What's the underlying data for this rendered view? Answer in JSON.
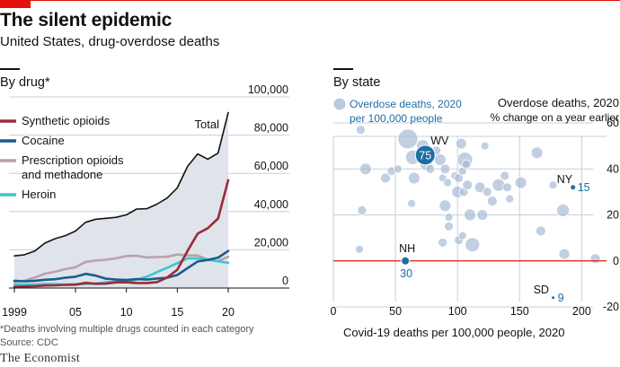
{
  "header": {
    "title": "The silent epidemic",
    "subtitle": "United States, drug-overdose deaths"
  },
  "left_section": {
    "title": "By drug*"
  },
  "right_section": {
    "title": "By state"
  },
  "footer": {
    "footnote": "*Deaths involving multiple drugs counted in each category",
    "source": "Source: CDC",
    "logo": "The Economist"
  },
  "colors": {
    "brand_red": "#e3120b",
    "total_area": "#dfe4ea",
    "synthetic": "#9e2a3a",
    "cocaine": "#1a5c8f",
    "prescription": "#b8a2ac",
    "heroin": "#3ec3cf",
    "bubble": "#a9bdd6",
    "highlight": "#1e6ea3",
    "zero_line": "#e3120b",
    "grid": "#c4d0dc"
  },
  "chart_data": [
    {
      "type": "line",
      "title": "By drug*",
      "x": [
        1999,
        2000,
        2001,
        2002,
        2003,
        2004,
        2005,
        2006,
        2007,
        2008,
        2009,
        2010,
        2011,
        2012,
        2013,
        2014,
        2015,
        2016,
        2017,
        2018,
        2019,
        2020
      ],
      "x_tick_labels": [
        "1999",
        "05",
        "10",
        "15",
        "20"
      ],
      "x_tick_values": [
        1999,
        2005,
        2010,
        2015,
        2020
      ],
      "ylim": [
        0,
        100000
      ],
      "y_ticks": [
        0,
        20000,
        40000,
        60000,
        80000,
        100000
      ],
      "y_tick_labels": [
        "0",
        "20,000",
        "40,000",
        "60,000",
        "80,000",
        "100,000"
      ],
      "total_label": "Total",
      "series": [
        {
          "name": "Total",
          "key": "total",
          "values": [
            16800,
            17400,
            19400,
            23500,
            25800,
            27400,
            29800,
            34400,
            36000,
            36500,
            37000,
            38300,
            41300,
            41500,
            43900,
            47100,
            52400,
            63600,
            70200,
            67400,
            70600,
            91800
          ]
        },
        {
          "name": "Synthetic opioids",
          "key": "synthetic",
          "values": [
            700,
            800,
            950,
            1300,
            1400,
            1650,
            1750,
            2700,
            2200,
            2300,
            2950,
            3000,
            2650,
            2650,
            3100,
            5500,
            9600,
            19400,
            28500,
            31300,
            36400,
            56500
          ]
        },
        {
          "name": "Cocaine",
          "key": "cocaine",
          "values": [
            3800,
            3500,
            3800,
            4300,
            4600,
            5400,
            5900,
            7400,
            6500,
            4900,
            4400,
            4200,
            4700,
            4400,
            5000,
            5400,
            6800,
            10400,
            13900,
            14700,
            15900,
            19400
          ]
        },
        {
          "name": "Prescription opioids and methadone",
          "key": "prescription",
          "values": [
            3400,
            3800,
            5500,
            7500,
            8500,
            9900,
            10900,
            13700,
            14400,
            14800,
            15600,
            16700,
            16900,
            16000,
            16200,
            16400,
            17500,
            17100,
            17000,
            14900,
            14100,
            16400
          ]
        },
        {
          "name": "Heroin",
          "key": "heroin",
          "values": [
            2000,
            1800,
            1800,
            2100,
            2100,
            1900,
            2000,
            2100,
            2400,
            3000,
            3300,
            3000,
            4400,
            5900,
            8300,
            10600,
            13000,
            15500,
            15500,
            14900,
            14000,
            13200
          ]
        }
      ],
      "legend": [
        "Synthetic opioids",
        "Cocaine",
        "Prescription opioids and methadone",
        "Heroin"
      ]
    },
    {
      "type": "scatter",
      "title": "By state",
      "xlabel": "Covid-19 deaths per 100,000 people, 2020",
      "ylabel": "Overdose deaths, 2020",
      "ylabel_sub": "% change on a year earlier",
      "legend_label": "Overdose deaths, 2020 per 100,000 people",
      "xlim": [
        0,
        220
      ],
      "ylim": [
        -20,
        60
      ],
      "x_ticks": [
        0,
        50,
        100,
        150,
        200
      ],
      "y_ticks": [
        -20,
        0,
        20,
        40,
        60
      ],
      "points": [
        {
          "x": 22,
          "y": 57,
          "r": 10
        },
        {
          "x": 26,
          "y": 40,
          "r": 13
        },
        {
          "x": 23,
          "y": 22,
          "r": 10
        },
        {
          "x": 21,
          "y": 5,
          "r": 9
        },
        {
          "x": 42,
          "y": 36,
          "r": 11
        },
        {
          "x": 47,
          "y": 39,
          "r": 10
        },
        {
          "x": 52,
          "y": 40,
          "r": 9
        },
        {
          "x": 60,
          "y": 53,
          "r": 22
        },
        {
          "x": 64,
          "y": 45,
          "r": 16
        },
        {
          "x": 65,
          "y": 36,
          "r": 13
        },
        {
          "x": 63,
          "y": 25,
          "r": 9
        },
        {
          "x": 72,
          "y": 50,
          "r": 14
        },
        {
          "x": 75,
          "y": 42,
          "r": 14
        },
        {
          "x": 78,
          "y": 40,
          "r": 10
        },
        {
          "x": 83,
          "y": 48,
          "r": 10
        },
        {
          "x": 86,
          "y": 44,
          "r": 13
        },
        {
          "x": 88,
          "y": 36,
          "r": 9
        },
        {
          "x": 90,
          "y": 40,
          "r": 11
        },
        {
          "x": 92,
          "y": 34,
          "r": 9
        },
        {
          "x": 90,
          "y": 24,
          "r": 13
        },
        {
          "x": 93,
          "y": 19,
          "r": 9
        },
        {
          "x": 93,
          "y": 15,
          "r": 10
        },
        {
          "x": 88,
          "y": 8,
          "r": 10
        },
        {
          "x": 98,
          "y": 37,
          "r": 9
        },
        {
          "x": 100,
          "y": 30,
          "r": 13
        },
        {
          "x": 101,
          "y": 36,
          "r": 10
        },
        {
          "x": 103,
          "y": 51,
          "r": 12
        },
        {
          "x": 104,
          "y": 39,
          "r": 9
        },
        {
          "x": 106,
          "y": 44,
          "r": 17
        },
        {
          "x": 105,
          "y": 30,
          "r": 10
        },
        {
          "x": 108,
          "y": 33,
          "r": 11
        },
        {
          "x": 101,
          "y": 9,
          "r": 10
        },
        {
          "x": 104,
          "y": 11,
          "r": 9
        },
        {
          "x": 107,
          "y": 42,
          "r": 10
        },
        {
          "x": 110,
          "y": 20,
          "r": 13
        },
        {
          "x": 112,
          "y": 7,
          "r": 16
        },
        {
          "x": 118,
          "y": 32,
          "r": 12
        },
        {
          "x": 120,
          "y": 20,
          "r": 12
        },
        {
          "x": 122,
          "y": 50,
          "r": 9
        },
        {
          "x": 124,
          "y": 30,
          "r": 10
        },
        {
          "x": 128,
          "y": 26,
          "r": 11
        },
        {
          "x": 133,
          "y": 33,
          "r": 14
        },
        {
          "x": 138,
          "y": 37,
          "r": 10
        },
        {
          "x": 140,
          "y": 32,
          "r": 10
        },
        {
          "x": 142,
          "y": 27,
          "r": 9
        },
        {
          "x": 151,
          "y": 34,
          "r": 13
        },
        {
          "x": 164,
          "y": 47,
          "r": 13
        },
        {
          "x": 167,
          "y": 13,
          "r": 11
        },
        {
          "x": 177,
          "y": 33,
          "r": 9
        },
        {
          "x": 185,
          "y": 22,
          "r": 14
        },
        {
          "x": 186,
          "y": 3,
          "r": 12
        },
        {
          "x": 211,
          "y": 1,
          "r": 11
        }
      ],
      "highlighted": [
        {
          "label": "WV",
          "x": 74,
          "y": 46,
          "value": "75",
          "r": 18
        },
        {
          "label": "NY",
          "x": 193,
          "y": 32,
          "value": "15",
          "r": 6
        },
        {
          "label": "NH",
          "x": 58,
          "y": 0,
          "value": "30",
          "r": 9
        },
        {
          "label": "SD",
          "x": 177,
          "y": -16,
          "value": "9",
          "r": 4
        }
      ]
    }
  ]
}
